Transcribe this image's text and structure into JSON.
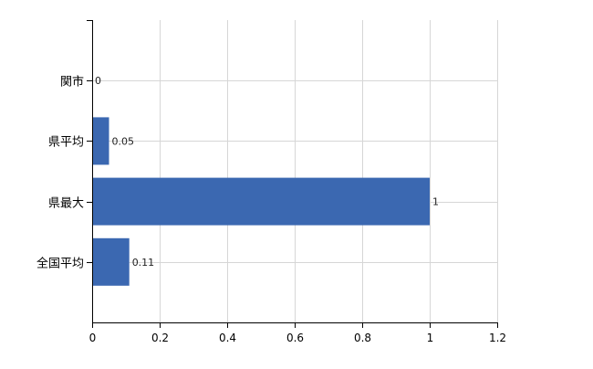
{
  "chart_data": {
    "type": "bar",
    "orientation": "horizontal",
    "categories": [
      "関市",
      "県平均",
      "県最大",
      "全国平均"
    ],
    "values": [
      0,
      0.05,
      1,
      0.11
    ],
    "value_labels": [
      "0",
      "0.05",
      "1",
      "0.11"
    ],
    "title": "",
    "xlabel": "",
    "ylabel": "",
    "xlim": [
      0,
      1.2
    ],
    "x_ticks": [
      "0",
      "0.2",
      "0.4",
      "0.6",
      "0.8",
      "1",
      "1.2"
    ],
    "grid": true,
    "bar_color": "#3b68b1",
    "grid_color": "#d6d6d6"
  }
}
